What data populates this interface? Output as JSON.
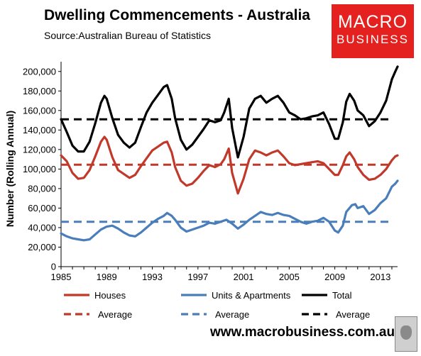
{
  "chart_data": {
    "type": "line",
    "title": "Dwelling Commencements - Australia",
    "subtitle": "Source:Australian Bureau of Statistics",
    "ylabel": "Number (Rolling Annual)",
    "xlabel": "",
    "xlim": [
      1985,
      2014.5
    ],
    "ylim": [
      0,
      210000
    ],
    "x_ticks": [
      "1985",
      "1989",
      "1993",
      "1997",
      "2001",
      "2005",
      "2009",
      "2013"
    ],
    "y_ticks": [
      "0",
      "20,000",
      "40,000",
      "60,000",
      "80,000",
      "100,000",
      "120,000",
      "140,000",
      "160,000",
      "180,000",
      "200,000"
    ],
    "grid": false,
    "legend_position": "bottom",
    "series": [
      {
        "name": "Houses",
        "color": "#c0392b",
        "style": "solid",
        "points": [
          [
            1985,
            114000
          ],
          [
            1985.5,
            108000
          ],
          [
            1986,
            96000
          ],
          [
            1986.5,
            90000
          ],
          [
            1987,
            91000
          ],
          [
            1987.5,
            99000
          ],
          [
            1988,
            113000
          ],
          [
            1988.5,
            128000
          ],
          [
            1988.8,
            133000
          ],
          [
            1989,
            130000
          ],
          [
            1989.5,
            112000
          ],
          [
            1990,
            99000
          ],
          [
            1990.5,
            95000
          ],
          [
            1991,
            91000
          ],
          [
            1991.5,
            94000
          ],
          [
            1992,
            103000
          ],
          [
            1992.5,
            111000
          ],
          [
            1993,
            119000
          ],
          [
            1993.5,
            123000
          ],
          [
            1994,
            127000
          ],
          [
            1994.3,
            128000
          ],
          [
            1994.7,
            117000
          ],
          [
            1995,
            102000
          ],
          [
            1995.5,
            88000
          ],
          [
            1996,
            83000
          ],
          [
            1996.5,
            85000
          ],
          [
            1997,
            91000
          ],
          [
            1997.5,
            98000
          ],
          [
            1998,
            104000
          ],
          [
            1998.5,
            102000
          ],
          [
            1999,
            105000
          ],
          [
            1999.3,
            110000
          ],
          [
            1999.7,
            121000
          ],
          [
            2000,
            96000
          ],
          [
            2000.5,
            75000
          ],
          [
            2001,
            90000
          ],
          [
            2001.5,
            110000
          ],
          [
            2002,
            119000
          ],
          [
            2002.5,
            117000
          ],
          [
            2003,
            114000
          ],
          [
            2003.5,
            117000
          ],
          [
            2004,
            119000
          ],
          [
            2004.5,
            113000
          ],
          [
            2005,
            106000
          ],
          [
            2005.5,
            104000
          ],
          [
            2006,
            105000
          ],
          [
            2006.5,
            106000
          ],
          [
            2007,
            107000
          ],
          [
            2007.5,
            108000
          ],
          [
            2008,
            106000
          ],
          [
            2008.5,
            100000
          ],
          [
            2009,
            94000
          ],
          [
            2009.3,
            94000
          ],
          [
            2009.7,
            104000
          ],
          [
            2010,
            113000
          ],
          [
            2010.3,
            117000
          ],
          [
            2010.7,
            110000
          ],
          [
            2011,
            102000
          ],
          [
            2011.5,
            94000
          ],
          [
            2012,
            89000
          ],
          [
            2012.5,
            90000
          ],
          [
            2013,
            94000
          ],
          [
            2013.5,
            100000
          ],
          [
            2014,
            109000
          ],
          [
            2014.3,
            113000
          ],
          [
            2014.5,
            114000
          ]
        ]
      },
      {
        "name": "Units & Apartments",
        "color": "#4a7ebb",
        "style": "solid",
        "points": [
          [
            1985,
            34000
          ],
          [
            1985.5,
            31000
          ],
          [
            1986,
            29000
          ],
          [
            1986.5,
            28000
          ],
          [
            1987,
            27000
          ],
          [
            1987.5,
            28000
          ],
          [
            1988,
            33000
          ],
          [
            1988.5,
            38000
          ],
          [
            1989,
            41000
          ],
          [
            1989.5,
            42000
          ],
          [
            1990,
            39000
          ],
          [
            1990.5,
            35000
          ],
          [
            1991,
            32000
          ],
          [
            1991.5,
            31000
          ],
          [
            1992,
            35000
          ],
          [
            1992.5,
            40000
          ],
          [
            1993,
            45000
          ],
          [
            1993.5,
            49000
          ],
          [
            1994,
            52000
          ],
          [
            1994.3,
            55000
          ],
          [
            1994.7,
            52000
          ],
          [
            1995,
            48000
          ],
          [
            1995.5,
            40000
          ],
          [
            1996,
            36000
          ],
          [
            1996.5,
            38000
          ],
          [
            1997,
            40000
          ],
          [
            1997.5,
            42000
          ],
          [
            1998,
            45000
          ],
          [
            1998.5,
            44000
          ],
          [
            1999,
            46000
          ],
          [
            1999.5,
            48000
          ],
          [
            2000,
            44000
          ],
          [
            2000.5,
            39000
          ],
          [
            2001,
            43000
          ],
          [
            2001.5,
            48000
          ],
          [
            2002,
            52000
          ],
          [
            2002.5,
            56000
          ],
          [
            2003,
            54000
          ],
          [
            2003.5,
            53000
          ],
          [
            2004,
            55000
          ],
          [
            2004.5,
            53000
          ],
          [
            2005,
            52000
          ],
          [
            2005.5,
            49000
          ],
          [
            2006,
            46000
          ],
          [
            2006.5,
            44000
          ],
          [
            2007,
            46000
          ],
          [
            2007.5,
            47000
          ],
          [
            2008,
            50000
          ],
          [
            2008.5,
            46000
          ],
          [
            2009,
            37000
          ],
          [
            2009.3,
            35000
          ],
          [
            2009.7,
            42000
          ],
          [
            2010,
            56000
          ],
          [
            2010.5,
            63000
          ],
          [
            2010.8,
            64000
          ],
          [
            2011,
            60000
          ],
          [
            2011.5,
            62000
          ],
          [
            2012,
            54000
          ],
          [
            2012.5,
            58000
          ],
          [
            2013,
            65000
          ],
          [
            2013.5,
            70000
          ],
          [
            2014,
            82000
          ],
          [
            2014.3,
            85000
          ],
          [
            2014.5,
            88000
          ]
        ]
      },
      {
        "name": "Total",
        "color": "#000000",
        "style": "solid",
        "points": [
          [
            1985,
            151000
          ],
          [
            1985.5,
            138000
          ],
          [
            1986,
            124000
          ],
          [
            1986.5,
            118000
          ],
          [
            1987,
            118000
          ],
          [
            1987.5,
            128000
          ],
          [
            1988,
            147000
          ],
          [
            1988.5,
            168000
          ],
          [
            1988.8,
            175000
          ],
          [
            1989,
            172000
          ],
          [
            1989.5,
            152000
          ],
          [
            1990,
            135000
          ],
          [
            1990.5,
            127000
          ],
          [
            1991,
            122000
          ],
          [
            1991.5,
            127000
          ],
          [
            1992,
            143000
          ],
          [
            1992.5,
            158000
          ],
          [
            1993,
            168000
          ],
          [
            1993.5,
            176000
          ],
          [
            1994,
            184000
          ],
          [
            1994.3,
            186000
          ],
          [
            1994.7,
            172000
          ],
          [
            1995,
            152000
          ],
          [
            1995.5,
            130000
          ],
          [
            1996,
            120000
          ],
          [
            1996.5,
            125000
          ],
          [
            1997,
            133000
          ],
          [
            1997.5,
            141000
          ],
          [
            1998,
            150000
          ],
          [
            1998.5,
            148000
          ],
          [
            1999,
            150000
          ],
          [
            1999.3,
            158000
          ],
          [
            1999.7,
            172000
          ],
          [
            2000,
            142000
          ],
          [
            2000.5,
            112000
          ],
          [
            2001,
            133000
          ],
          [
            2001.5,
            162000
          ],
          [
            2002,
            172000
          ],
          [
            2002.5,
            175000
          ],
          [
            2003,
            168000
          ],
          [
            2003.5,
            172000
          ],
          [
            2004,
            175000
          ],
          [
            2004.5,
            168000
          ],
          [
            2005,
            158000
          ],
          [
            2005.5,
            155000
          ],
          [
            2006,
            151000
          ],
          [
            2006.5,
            152000
          ],
          [
            2007,
            154000
          ],
          [
            2007.5,
            155000
          ],
          [
            2008,
            158000
          ],
          [
            2008.5,
            146000
          ],
          [
            2009,
            131000
          ],
          [
            2009.3,
            131000
          ],
          [
            2009.7,
            148000
          ],
          [
            2010,
            169000
          ],
          [
            2010.3,
            177000
          ],
          [
            2010.7,
            170000
          ],
          [
            2011,
            160000
          ],
          [
            2011.5,
            155000
          ],
          [
            2012,
            144000
          ],
          [
            2012.5,
            149000
          ],
          [
            2013,
            158000
          ],
          [
            2013.5,
            170000
          ],
          [
            2014,
            192000
          ],
          [
            2014.3,
            200000
          ],
          [
            2014.5,
            205000
          ]
        ]
      }
    ],
    "averages": [
      {
        "name": "Average",
        "color": "#c0392b",
        "value": 104500
      },
      {
        "name": "Average",
        "color": "#4a7ebb",
        "value": 46000
      },
      {
        "name": "Average",
        "color": "#000000",
        "value": 151000
      }
    ]
  },
  "branding": {
    "logo_line1": "MACRO",
    "logo_line2": "BUSINESS",
    "website": "www.macrobusiness.com.au"
  }
}
